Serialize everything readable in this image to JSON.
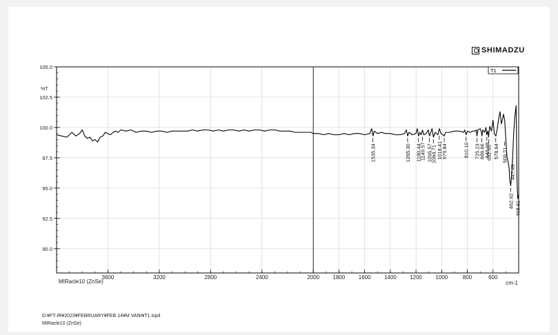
{
  "brand": {
    "logo_text": "SHIMADZU"
  },
  "footer": {
    "file_path": "D:¥FT-IR¥2023¥FEBRUARY¥FEB 14¥M VANI¥T1.ispd",
    "accessory": "MIRacle10 (ZnSe)"
  },
  "chart_data": {
    "type": "line",
    "title": "",
    "xlabel": "cm-1",
    "ylabel": "%T",
    "accessory_label": "MIRacle10 (ZnSe)",
    "xlim": [
      4000,
      400
    ],
    "ylim": [
      88.0,
      105.0
    ],
    "x_reversed": true,
    "grid": true,
    "legend_placement": "top-right",
    "x_ticks": [
      3600,
      3200,
      2800,
      2400,
      2000,
      1800,
      1600,
      1400,
      1200,
      1000,
      800,
      600
    ],
    "x_tick_labels": [
      "3600",
      "3200",
      "2800",
      "2400",
      "2000",
      "1800",
      "1600",
      "1400",
      "1200",
      "1000",
      "800",
      "600"
    ],
    "y_ticks": [
      90.0,
      92.5,
      95.0,
      97.5,
      100.0,
      102.5,
      105.0
    ],
    "y_tick_labels": [
      "90.0",
      "92.5",
      "95.0",
      "97.5",
      "100.0",
      "102.5",
      "105.0"
    ],
    "series": [
      {
        "name": "T1",
        "color": "#000000",
        "x": [
          4000,
          3960,
          3920,
          3880,
          3850,
          3820,
          3800,
          3780,
          3760,
          3740,
          3720,
          3700,
          3680,
          3660,
          3640,
          3620,
          3600,
          3580,
          3560,
          3540,
          3520,
          3500,
          3460,
          3420,
          3380,
          3340,
          3300,
          3260,
          3220,
          3180,
          3140,
          3100,
          3060,
          3020,
          2980,
          2940,
          2900,
          2860,
          2820,
          2780,
          2740,
          2700,
          2660,
          2620,
          2580,
          2540,
          2500,
          2460,
          2420,
          2380,
          2340,
          2300,
          2260,
          2220,
          2180,
          2140,
          2100,
          2060,
          2020,
          2000,
          1960,
          1920,
          1880,
          1840,
          1800,
          1760,
          1720,
          1680,
          1640,
          1600,
          1560,
          1545,
          1535,
          1525,
          1500,
          1470,
          1440,
          1400,
          1360,
          1320,
          1290,
          1275,
          1265,
          1255,
          1230,
          1200,
          1190,
          1180,
          1170,
          1160,
          1149,
          1140,
          1120,
          1105,
          1095,
          1085,
          1075,
          1064,
          1050,
          1030,
          1018,
          1005,
          990,
          980,
          970,
          940,
          900,
          860,
          830,
          820,
          810,
          800,
          780,
          760,
          740,
          730,
          725,
          718,
          700,
          690,
          686,
          680,
          665,
          655,
          648,
          640,
          635,
          632,
          625,
          612,
          600,
          590,
          578,
          568,
          555,
          545,
          535,
          525,
          518,
          509,
          500,
          492,
          485,
          480,
          474,
          470,
          462,
          455,
          447,
          440,
          430,
          420,
          413,
          408.91,
          404,
          400
        ],
        "y": [
          99.4,
          99.3,
          99.2,
          99.6,
          99.3,
          99.5,
          99.8,
          99.3,
          99.1,
          99.2,
          98.9,
          99.0,
          98.8,
          99.2,
          99.3,
          99.6,
          99.5,
          99.4,
          99.6,
          99.7,
          99.6,
          99.8,
          99.7,
          99.8,
          99.6,
          99.7,
          99.7,
          99.6,
          99.7,
          99.7,
          99.6,
          99.7,
          99.7,
          99.7,
          99.7,
          99.8,
          99.7,
          99.8,
          99.8,
          99.7,
          99.8,
          99.7,
          99.8,
          99.8,
          99.7,
          99.8,
          99.7,
          99.8,
          99.8,
          99.7,
          99.8,
          99.8,
          99.7,
          99.7,
          99.7,
          99.6,
          99.6,
          99.6,
          99.6,
          99.5,
          99.5,
          99.4,
          99.5,
          99.4,
          99.4,
          99.5,
          99.4,
          99.5,
          99.5,
          99.4,
          99.5,
          99.9,
          99.3,
          99.7,
          99.5,
          99.6,
          99.5,
          99.5,
          99.4,
          99.4,
          99.5,
          99.8,
          99.3,
          99.6,
          99.4,
          99.5,
          99.9,
          99.3,
          99.6,
          99.4,
          99.8,
          99.4,
          99.5,
          99.8,
          99.3,
          99.6,
          99.9,
          99.2,
          99.6,
          99.4,
          99.9,
          99.5,
          99.4,
          99.3,
          99.6,
          99.6,
          99.7,
          99.7,
          99.6,
          99.8,
          99.4,
          99.7,
          99.6,
          99.7,
          99.7,
          99.8,
          99.3,
          99.8,
          99.9,
          99.6,
          99.3,
          99.8,
          99.6,
          100.0,
          99.4,
          99.7,
          99.2,
          99.5,
          100.1,
          99.7,
          100.6,
          99.5,
          99.3,
          99.8,
          100.8,
          101.3,
          100.3,
          100.7,
          101.1,
          100.6,
          99.0,
          97.6,
          97.3,
          97.0,
          96.6,
          95.7,
          95.2,
          96.1,
          97.6,
          99.4,
          100.9,
          101.8,
          95.6,
          94.6,
          94.2,
          94.3
        ]
      }
    ],
    "peaks": [
      {
        "x": 1535.34,
        "y": 99.3,
        "label": "1535.34"
      },
      {
        "x": 1265.3,
        "y": 99.3,
        "label": "1265.30"
      },
      {
        "x": 1180.44,
        "y": 99.3,
        "label": "1180.44"
      },
      {
        "x": 1149.57,
        "y": 99.4,
        "label": "1149.57"
      },
      {
        "x": 1095.57,
        "y": 99.3,
        "label": "1095.57"
      },
      {
        "x": 1064.71,
        "y": 99.2,
        "label": "1064.71"
      },
      {
        "x": 1018.41,
        "y": 99.5,
        "label": "1018.41"
      },
      {
        "x": 979.84,
        "y": 99.3,
        "label": "979.84"
      },
      {
        "x": 810.1,
        "y": 99.4,
        "label": "810.10"
      },
      {
        "x": 725.23,
        "y": 99.3,
        "label": "725.23"
      },
      {
        "x": 686.66,
        "y": 99.3,
        "label": "686.66"
      },
      {
        "x": 648.08,
        "y": 99.4,
        "label": "648.08"
      },
      {
        "x": 632.65,
        "y": 99.2,
        "label": "632.65"
      },
      {
        "x": 578.64,
        "y": 99.3,
        "label": "578.64"
      },
      {
        "x": 509.21,
        "y": 99.0,
        "label": "509.21"
      },
      {
        "x": 462.92,
        "y": 95.2,
        "label": "462.92"
      },
      {
        "x": 447.49,
        "y": 97.6,
        "label": "447.49"
      },
      {
        "x": 408.91,
        "y": 94.6,
        "label": "408.91"
      }
    ]
  }
}
